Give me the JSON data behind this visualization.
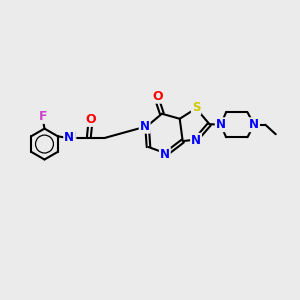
{
  "background_color": "#ebebeb",
  "bond_color": "#000000",
  "atom_colors": {
    "F": "#cc44cc",
    "O": "#ff0000",
    "N": "#0000ff",
    "S": "#cccc00",
    "H": "#448888",
    "C": "#000000"
  },
  "line_width": 1.5,
  "font_size": 8.5,
  "figsize": [
    3.0,
    3.0
  ],
  "dpi": 100
}
